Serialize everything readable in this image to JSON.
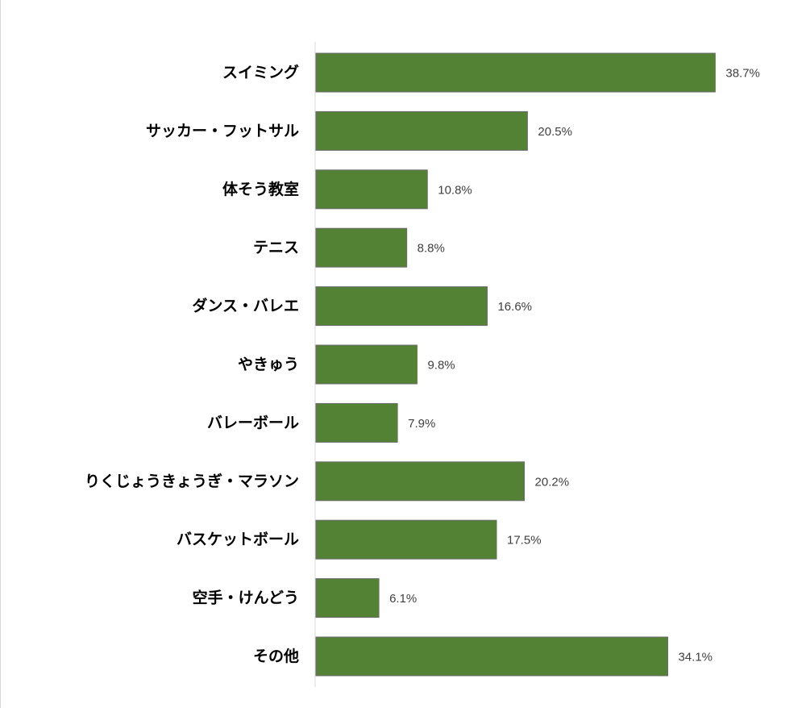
{
  "chart_data": {
    "type": "bar",
    "orientation": "horizontal",
    "categories": [
      "スイミング",
      "サッカー・フットサル",
      "体そう教室",
      "テニス",
      "ダンス・バレエ",
      "やきゅう",
      "バレーボール",
      "りくじょうきょうぎ・マラソン",
      "バスケットボール",
      "空手・けんどう",
      "その他"
    ],
    "values": [
      38.7,
      20.5,
      10.8,
      8.8,
      16.6,
      9.8,
      7.9,
      20.2,
      17.5,
      6.1,
      34.1
    ],
    "value_labels": [
      "38.7%",
      "20.5%",
      "10.8%",
      "8.8%",
      "16.6%",
      "9.8%",
      "7.9%",
      "20.2%",
      "17.5%",
      "6.1%",
      "34.1%"
    ],
    "title": "",
    "xlabel": "",
    "ylabel": "",
    "xlim": [
      0,
      40
    ],
    "grid": false,
    "legend": "none",
    "bar_color": "#548235",
    "bar_border_color": "#6b6b6b"
  }
}
